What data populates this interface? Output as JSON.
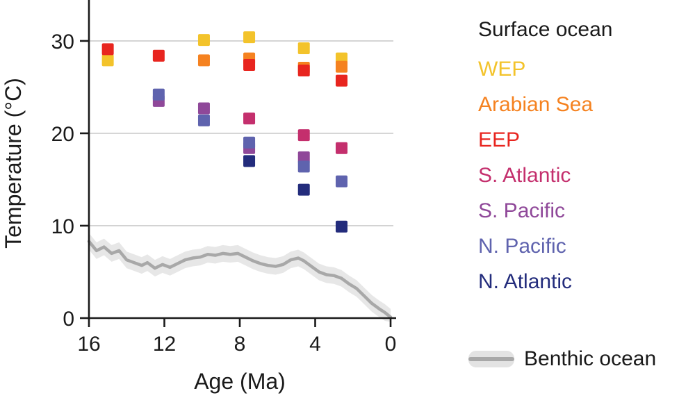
{
  "chart_data": {
    "type": "scatter",
    "title": "",
    "xlabel": "Age (Ma)",
    "ylabel": "Temperature (°C)",
    "x_axis": {
      "min": 0,
      "max": 16,
      "reversed": true,
      "ticks": [
        16,
        12,
        8,
        4,
        0
      ]
    },
    "y_axis": {
      "min": 0,
      "max": 33,
      "ticks": [
        0,
        10,
        20,
        30
      ]
    },
    "grid": true,
    "grid_color": "#cccccc",
    "axis_color": "#1a1a1a",
    "marker": "square",
    "marker_size": 17,
    "legend_position": "right",
    "series": [
      {
        "name": "WEP",
        "color": "#f3c32b",
        "points": [
          [
            15.0,
            27.9
          ],
          [
            9.9,
            30.1
          ],
          [
            7.5,
            30.4
          ],
          [
            4.6,
            29.2
          ],
          [
            2.6,
            28.1
          ]
        ]
      },
      {
        "name": "Arabian Sea",
        "color": "#f58220",
        "points": [
          [
            9.9,
            27.9
          ],
          [
            7.5,
            28.1
          ],
          [
            4.6,
            27.1
          ],
          [
            2.6,
            27.2
          ]
        ]
      },
      {
        "name": "EEP",
        "color": "#e8251f",
        "points": [
          [
            15.0,
            29.1
          ],
          [
            12.3,
            28.4
          ],
          [
            7.5,
            27.4
          ],
          [
            4.6,
            26.8
          ],
          [
            2.6,
            25.7
          ]
        ]
      },
      {
        "name": "S. Atlantic",
        "color": "#c42f6d",
        "points": [
          [
            7.5,
            21.6
          ],
          [
            4.6,
            19.8
          ],
          [
            2.6,
            18.4
          ]
        ]
      },
      {
        "name": "S. Pacific",
        "color": "#8f4899",
        "points": [
          [
            12.3,
            23.5
          ],
          [
            9.9,
            22.7
          ],
          [
            7.5,
            18.4
          ],
          [
            4.6,
            17.4
          ]
        ]
      },
      {
        "name": "N. Pacific",
        "color": "#5f63ae",
        "points": [
          [
            12.3,
            24.2
          ],
          [
            9.9,
            21.4
          ],
          [
            7.5,
            19.0
          ],
          [
            4.6,
            16.4
          ],
          [
            2.6,
            14.8
          ]
        ]
      },
      {
        "name": "N. Atlantic",
        "color": "#232c7c",
        "points": [
          [
            7.5,
            17.0
          ],
          [
            4.6,
            13.9
          ],
          [
            2.6,
            9.9
          ]
        ]
      }
    ],
    "benthic": {
      "name": "Benthic ocean",
      "line_color": "#a8a8a8",
      "band_color": "#e3e3e3",
      "band_halfwidth": 0.9,
      "points": [
        [
          16.0,
          8.3
        ],
        [
          15.6,
          7.3
        ],
        [
          15.2,
          7.7
        ],
        [
          14.8,
          7.0
        ],
        [
          14.4,
          7.3
        ],
        [
          14.0,
          6.3
        ],
        [
          13.6,
          6.0
        ],
        [
          13.2,
          5.7
        ],
        [
          12.9,
          6.0
        ],
        [
          12.5,
          5.4
        ],
        [
          12.1,
          5.8
        ],
        [
          11.7,
          5.5
        ],
        [
          11.3,
          5.9
        ],
        [
          10.9,
          6.3
        ],
        [
          10.5,
          6.5
        ],
        [
          10.1,
          6.6
        ],
        [
          9.7,
          6.9
        ],
        [
          9.3,
          6.8
        ],
        [
          8.9,
          7.0
        ],
        [
          8.5,
          6.9
        ],
        [
          8.1,
          7.0
        ],
        [
          7.7,
          6.6
        ],
        [
          7.3,
          6.2
        ],
        [
          6.9,
          5.9
        ],
        [
          6.5,
          5.7
        ],
        [
          6.1,
          5.6
        ],
        [
          5.7,
          5.8
        ],
        [
          5.3,
          6.3
        ],
        [
          4.9,
          6.5
        ],
        [
          4.6,
          6.2
        ],
        [
          4.2,
          5.6
        ],
        [
          3.8,
          5.0
        ],
        [
          3.4,
          4.7
        ],
        [
          3.0,
          4.6
        ],
        [
          2.6,
          4.3
        ],
        [
          2.2,
          3.7
        ],
        [
          1.8,
          3.2
        ],
        [
          1.4,
          2.4
        ],
        [
          1.0,
          1.6
        ],
        [
          0.6,
          1.0
        ],
        [
          0.3,
          0.6
        ],
        [
          0.0,
          0.1
        ]
      ]
    },
    "legend": {
      "title": "Surface ocean",
      "benthic_label": "Benthic ocean"
    }
  }
}
